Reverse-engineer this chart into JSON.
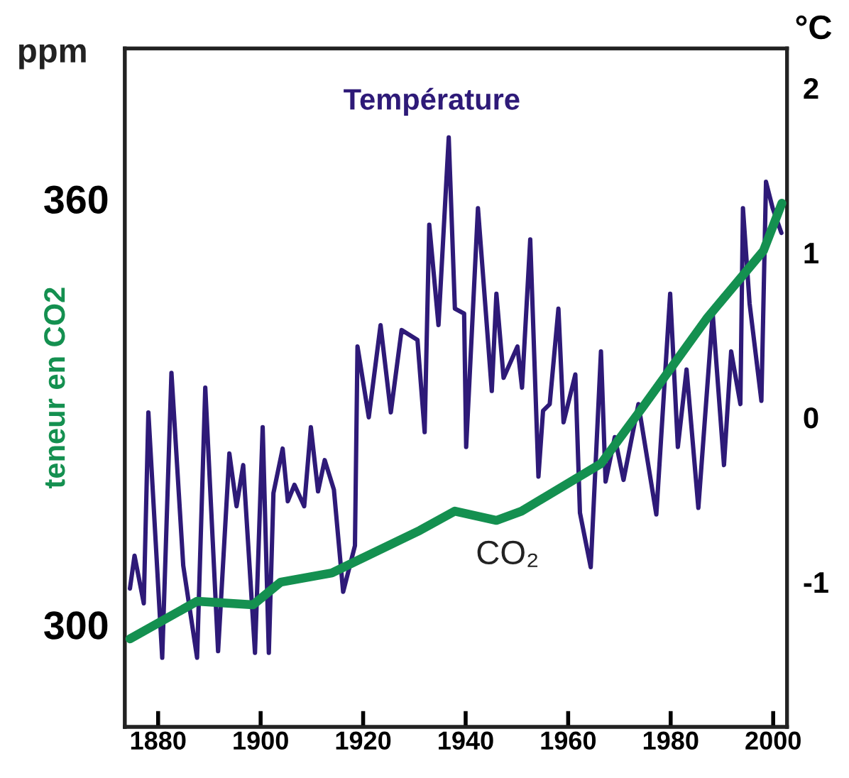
{
  "chart_data": {
    "type": "line",
    "ylabel": "teneur en CO2",
    "y2label": "°C",
    "annotations": [
      "ppm"
    ],
    "xlim": [
      1873.5,
      2002.7
    ],
    "xticks": [
      1880,
      1900,
      1920,
      1940,
      1960,
      1980,
      2000
    ],
    "ylim": [
      285.6,
      381.2
    ],
    "yticks": [
      300,
      360
    ],
    "y2lim": [
      -1.88,
      2.24
    ],
    "y2ticks": [
      -1,
      0,
      1,
      2
    ],
    "line_style": "solid",
    "series": [
      {
        "name": "Température",
        "color": "#2e1a78",
        "axis": "y2",
        "x": [
          1874.5,
          1875.4,
          1877.2,
          1878.1,
          1880.8,
          1882.6,
          1884.9,
          1887.6,
          1889.2,
          1891.7,
          1893.9,
          1895.3,
          1896.6,
          1898.9,
          1900.4,
          1901.6,
          1902.5,
          1904.3,
          1905.3,
          1906.6,
          1908.5,
          1909.8,
          1911.2,
          1912.5,
          1914.3,
          1916.1,
          1918.4,
          1918.9,
          1921.1,
          1923.4,
          1925.4,
          1927.5,
          1930.6,
          1932.0,
          1932.9,
          1934.7,
          1936.7,
          1937.9,
          1939.7,
          1940.1,
          1942.4,
          1945.1,
          1946.0,
          1947.4,
          1950.1,
          1951.0,
          1952.6,
          1954.2,
          1955.1,
          1956.4,
          1958.1,
          1959.1,
          1961.4,
          1962.3,
          1964.4,
          1966.4,
          1967.3,
          1969.1,
          1970.8,
          1973.7,
          1977.2,
          1979.9,
          1981.4,
          1983.1,
          1985.4,
          1988.2,
          1990.4,
          1991.8,
          1993.6,
          1994.1,
          1995.4,
          1997.7,
          1998.6,
          1999.9,
          2001.6
        ],
        "values": [
          -1.04,
          -0.84,
          -1.13,
          0.03,
          -1.46,
          0.27,
          -0.9,
          -1.46,
          0.18,
          -1.42,
          -0.22,
          -0.54,
          -0.29,
          -1.43,
          -0.06,
          -1.43,
          -0.46,
          -0.19,
          -0.51,
          -0.41,
          -0.54,
          -0.06,
          -0.45,
          -0.26,
          -0.44,
          -1.06,
          -0.78,
          0.43,
          0.0,
          0.56,
          0.03,
          0.53,
          0.47,
          -0.09,
          1.17,
          0.56,
          1.7,
          0.66,
          0.63,
          -0.18,
          1.27,
          0.16,
          0.75,
          0.24,
          0.43,
          0.18,
          1.08,
          -0.36,
          0.04,
          0.08,
          0.66,
          -0.03,
          0.26,
          -0.58,
          -0.91,
          0.4,
          -0.39,
          -0.12,
          -0.38,
          0.08,
          -0.59,
          0.75,
          -0.18,
          0.29,
          -0.55,
          0.63,
          -0.29,
          0.4,
          0.08,
          1.27,
          0.69,
          0.1,
          1.43,
          1.27,
          1.12
        ]
      },
      {
        "name": "CO₂",
        "color": "#149050",
        "x": [
          1874.5,
          1887.6,
          1898.5,
          1903.9,
          1913.9,
          1931.1,
          1937.9,
          1946.0,
          1950.9,
          1966.4,
          1974.6,
          1987.2,
          1998.1,
          2001.7
        ],
        "values": [
          298,
          303.3,
          302.8,
          306,
          307.3,
          313.3,
          316,
          314.7,
          316,
          322.7,
          330.7,
          343.3,
          352.7,
          359.4
        ]
      }
    ]
  }
}
